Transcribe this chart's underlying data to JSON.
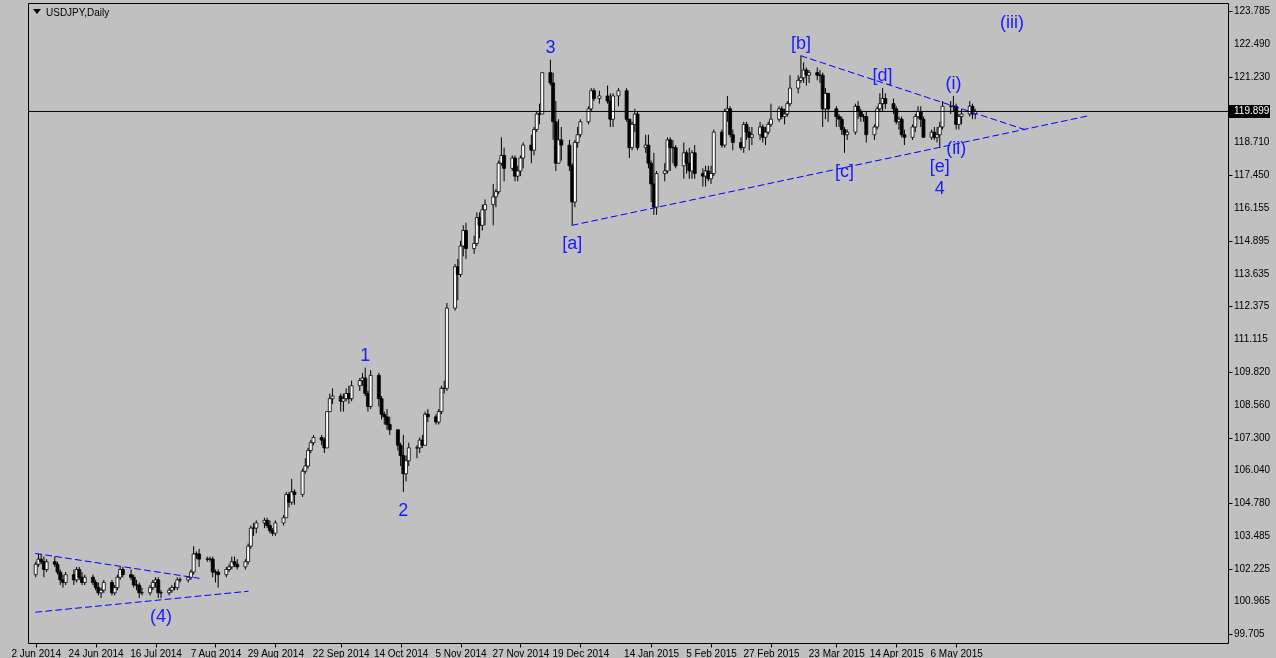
{
  "chart_data": {
    "type": "candlestick",
    "title": "USDJPY,Daily",
    "xlim": [
      "2014-06-01",
      "2015-08-12"
    ],
    "xticks": [
      {
        "value": "2014-06-02",
        "label": "2 Jun 2014"
      },
      {
        "value": "2014-06-24",
        "label": "24 Jun 2014"
      },
      {
        "value": "2014-07-16",
        "label": "16 Jul 2014"
      },
      {
        "value": "2014-08-07",
        "label": "7 Aug 2014"
      },
      {
        "value": "2014-08-29",
        "label": "29 Aug 2014"
      },
      {
        "value": "2014-09-22",
        "label": "22 Sep 2014"
      },
      {
        "value": "2014-10-14",
        "label": "14 Oct 2014"
      },
      {
        "value": "2014-11-05",
        "label": "5 Nov 2014"
      },
      {
        "value": "2014-11-27",
        "label": "27 Nov 2014"
      },
      {
        "value": "2014-12-19",
        "label": "19 Dec 2014"
      },
      {
        "value": "2015-01-14",
        "label": "14 Jan 2015"
      },
      {
        "value": "2015-02-05",
        "label": "5 Feb 2015"
      },
      {
        "value": "2015-02-27",
        "label": "27 Feb 2015"
      },
      {
        "value": "2015-03-23",
        "label": "23 Mar 2015"
      },
      {
        "value": "2015-04-14",
        "label": "14 Apr 2015"
      },
      {
        "value": "2015-05-06",
        "label": "6 May 2015"
      }
    ],
    "ylim": [
      99.36,
      124.09
    ],
    "yticks": [
      99.705,
      100.965,
      102.225,
      103.485,
      {
        "value": 104.78,
        "label": "104.780"
      },
      {
        "value": 106.04,
        "label": "106.040"
      },
      {
        "value": 107.3,
        "label": "107.300"
      },
      {
        "value": 108.56,
        "label": "108.560"
      },
      {
        "value": 109.82,
        "label": "109.820"
      },
      111.115,
      112.375,
      113.635,
      114.895,
      116.155,
      {
        "value": 117.45,
        "label": "117.450"
      },
      {
        "value": 118.71,
        "label": "118.710"
      },
      {
        "value": 121.23,
        "label": "121.230"
      },
      {
        "value": 122.49,
        "label": "122.490"
      },
      123.785
    ],
    "x": [
      "2014-06-02",
      "2014-06-03",
      "2014-06-04",
      "2014-06-05",
      "2014-06-06",
      "2014-06-09",
      "2014-06-10",
      "2014-06-11",
      "2014-06-12",
      "2014-06-13",
      "2014-06-16",
      "2014-06-17",
      "2014-06-18",
      "2014-06-19",
      "2014-06-20",
      "2014-06-23",
      "2014-06-24",
      "2014-06-25",
      "2014-06-26",
      "2014-06-27",
      "2014-06-30",
      "2014-07-01",
      "2014-07-02",
      "2014-07-03",
      "2014-07-04",
      "2014-07-07",
      "2014-07-08",
      "2014-07-09",
      "2014-07-10",
      "2014-07-11",
      "2014-07-14",
      "2014-07-15",
      "2014-07-16",
      "2014-07-17",
      "2014-07-18",
      "2014-07-21",
      "2014-07-22",
      "2014-07-23",
      "2014-07-24",
      "2014-07-25",
      "2014-07-28",
      "2014-07-29",
      "2014-07-30",
      "2014-07-31",
      "2014-08-01",
      "2014-08-04",
      "2014-08-05",
      "2014-08-06",
      "2014-08-07",
      "2014-08-08",
      "2014-08-11",
      "2014-08-12",
      "2014-08-13",
      "2014-08-14",
      "2014-08-15",
      "2014-08-18",
      "2014-08-19",
      "2014-08-20",
      "2014-08-21",
      "2014-08-22",
      "2014-08-25",
      "2014-08-26",
      "2014-08-27",
      "2014-08-28",
      "2014-08-29",
      "2014-09-01",
      "2014-09-02",
      "2014-09-03",
      "2014-09-04",
      "2014-09-05",
      "2014-09-08",
      "2014-09-09",
      "2014-09-10",
      "2014-09-11",
      "2014-09-12",
      "2014-09-15",
      "2014-09-16",
      "2014-09-17",
      "2014-09-18",
      "2014-09-19",
      "2014-09-22",
      "2014-09-23",
      "2014-09-24",
      "2014-09-25",
      "2014-09-26",
      "2014-09-29",
      "2014-09-30",
      "2014-10-01",
      "2014-10-02",
      "2014-10-03",
      "2014-10-06",
      "2014-10-07",
      "2014-10-08",
      "2014-10-09",
      "2014-10-10",
      "2014-10-13",
      "2014-10-14",
      "2014-10-15",
      "2014-10-16",
      "2014-10-17",
      "2014-10-20",
      "2014-10-21",
      "2014-10-22",
      "2014-10-23",
      "2014-10-24",
      "2014-10-27",
      "2014-10-28",
      "2014-10-29",
      "2014-10-30",
      "2014-10-31",
      "2014-11-03",
      "2014-11-04",
      "2014-11-05",
      "2014-11-06",
      "2014-11-07",
      "2014-11-10",
      "2014-11-11",
      "2014-11-12",
      "2014-11-13",
      "2014-11-14",
      "2014-11-17",
      "2014-11-18",
      "2014-11-19",
      "2014-11-20",
      "2014-11-21",
      "2014-11-24",
      "2014-11-25",
      "2014-11-26",
      "2014-11-27",
      "2014-11-28",
      "2014-12-01",
      "2014-12-02",
      "2014-12-03",
      "2014-12-04",
      "2014-12-05",
      "2014-12-08",
      "2014-12-09",
      "2014-12-10",
      "2014-12-11",
      "2014-12-12",
      "2014-12-15",
      "2014-12-16",
      "2014-12-17",
      "2014-12-18",
      "2014-12-19",
      "2014-12-22",
      "2014-12-23",
      "2014-12-24",
      "2014-12-26",
      "2014-12-29",
      "2014-12-30",
      "2014-12-31",
      "2015-01-02",
      "2015-01-05",
      "2015-01-06",
      "2015-01-07",
      "2015-01-08",
      "2015-01-09",
      "2015-01-12",
      "2015-01-13",
      "2015-01-14",
      "2015-01-15",
      "2015-01-16",
      "2015-01-19",
      "2015-01-20",
      "2015-01-21",
      "2015-01-22",
      "2015-01-23",
      "2015-01-26",
      "2015-01-27",
      "2015-01-28",
      "2015-01-29",
      "2015-01-30",
      "2015-02-02",
      "2015-02-03",
      "2015-02-04",
      "2015-02-05",
      "2015-02-06",
      "2015-02-09",
      "2015-02-10",
      "2015-02-11",
      "2015-02-12",
      "2015-02-13",
      "2015-02-16",
      "2015-02-17",
      "2015-02-18",
      "2015-02-19",
      "2015-02-20",
      "2015-02-23",
      "2015-02-24",
      "2015-02-25",
      "2015-02-26",
      "2015-02-27",
      "2015-03-02",
      "2015-03-03",
      "2015-03-04",
      "2015-03-05",
      "2015-03-06",
      "2015-03-09",
      "2015-03-10",
      "2015-03-11",
      "2015-03-12",
      "2015-03-13",
      "2015-03-16",
      "2015-03-17",
      "2015-03-18",
      "2015-03-19",
      "2015-03-20",
      "2015-03-23",
      "2015-03-24",
      "2015-03-25",
      "2015-03-26",
      "2015-03-27",
      "2015-03-30",
      "2015-03-31",
      "2015-04-01",
      "2015-04-02",
      "2015-04-03",
      "2015-04-06",
      "2015-04-07",
      "2015-04-08",
      "2015-04-09",
      "2015-04-10",
      "2015-04-13",
      "2015-04-14",
      "2015-04-15",
      "2015-04-16",
      "2015-04-17",
      "2015-04-20",
      "2015-04-21",
      "2015-04-22",
      "2015-04-23",
      "2015-04-24",
      "2015-04-27",
      "2015-04-28",
      "2015-04-29",
      "2015-04-30",
      "2015-05-01",
      "2015-05-04",
      "2015-05-05",
      "2015-05-06",
      "2015-05-07",
      "2015-05-08",
      "2015-05-11",
      "2015-05-12",
      "2015-05-13"
    ],
    "ohlc": [
      [
        102.0,
        102.5,
        101.9,
        102.4
      ],
      [
        102.4,
        102.8,
        102.3,
        102.6
      ],
      [
        102.6,
        102.8,
        102.4,
        102.5
      ],
      [
        102.5,
        102.7,
        101.9,
        102.2
      ],
      [
        102.2,
        102.6,
        102.1,
        102.5
      ],
      [
        102.5,
        102.7,
        102.3,
        102.4
      ],
      [
        102.4,
        102.5,
        102.0,
        102.1
      ],
      [
        102.1,
        102.2,
        101.6,
        101.8
      ],
      [
        101.8,
        102.0,
        101.5,
        101.7
      ],
      [
        101.7,
        102.1,
        101.6,
        102.0
      ],
      [
        102.0,
        102.2,
        101.6,
        101.8
      ],
      [
        101.8,
        102.3,
        101.7,
        102.2
      ],
      [
        102.2,
        102.3,
        101.8,
        101.9
      ],
      [
        101.9,
        102.1,
        101.6,
        101.7
      ],
      [
        101.7,
        102.0,
        101.6,
        101.9
      ],
      [
        101.9,
        102.0,
        101.6,
        101.7
      ],
      [
        101.7,
        101.8,
        101.4,
        101.5
      ],
      [
        101.5,
        101.7,
        101.2,
        101.3
      ],
      [
        101.3,
        101.5,
        101.1,
        101.4
      ],
      [
        101.4,
        101.8,
        101.3,
        101.7
      ],
      [
        101.7,
        101.8,
        101.2,
        101.3
      ],
      [
        101.3,
        101.6,
        101.2,
        101.5
      ],
      [
        101.5,
        102.0,
        101.4,
        101.9
      ],
      [
        101.9,
        102.3,
        101.8,
        102.2
      ],
      [
        102.2,
        102.3,
        101.9,
        102.0
      ],
      [
        102.0,
        102.2,
        101.8,
        101.9
      ],
      [
        101.9,
        102.0,
        101.5,
        101.6
      ],
      [
        101.6,
        101.8,
        101.4,
        101.6
      ],
      [
        101.6,
        101.7,
        101.1,
        101.3
      ],
      [
        101.3,
        101.5,
        101.2,
        101.3
      ],
      [
        101.3,
        101.6,
        101.2,
        101.5
      ],
      [
        101.5,
        101.8,
        101.4,
        101.7
      ],
      [
        101.7,
        101.9,
        101.5,
        101.8
      ],
      [
        101.8,
        101.9,
        101.1,
        101.3
      ],
      [
        101.3,
        101.4,
        101.1,
        101.3
      ],
      [
        101.3,
        101.5,
        101.2,
        101.4
      ],
      [
        101.4,
        101.6,
        101.3,
        101.5
      ],
      [
        101.5,
        101.7,
        101.4,
        101.5
      ],
      [
        101.5,
        101.9,
        101.4,
        101.8
      ],
      [
        101.8,
        101.9,
        101.7,
        101.8
      ],
      [
        101.8,
        101.9,
        101.7,
        101.9
      ],
      [
        101.9,
        102.2,
        101.8,
        102.1
      ],
      [
        102.1,
        103.1,
        102.0,
        102.8
      ],
      [
        102.8,
        102.9,
        102.6,
        102.8
      ],
      [
        102.8,
        103.0,
        102.3,
        102.6
      ],
      [
        102.6,
        102.7,
        102.5,
        102.6
      ],
      [
        102.6,
        102.7,
        102.5,
        102.6
      ],
      [
        102.6,
        102.7,
        101.9,
        102.1
      ],
      [
        102.1,
        102.2,
        101.7,
        102.1
      ],
      [
        102.1,
        102.2,
        101.5,
        102.0
      ],
      [
        102.0,
        102.3,
        101.9,
        102.2
      ],
      [
        102.2,
        102.4,
        102.1,
        102.3
      ],
      [
        102.3,
        102.7,
        102.2,
        102.5
      ],
      [
        102.5,
        102.7,
        102.3,
        102.4
      ],
      [
        102.4,
        102.6,
        102.2,
        102.3
      ],
      [
        102.3,
        102.6,
        102.2,
        102.5
      ],
      [
        102.5,
        103.2,
        102.4,
        103.1
      ],
      [
        103.1,
        103.9,
        103.0,
        103.8
      ],
      [
        103.8,
        104.0,
        103.5,
        103.8
      ],
      [
        103.8,
        104.1,
        103.6,
        104.0
      ],
      [
        104.0,
        104.2,
        103.8,
        104.1
      ],
      [
        104.1,
        104.2,
        103.8,
        103.9
      ],
      [
        103.9,
        104.1,
        103.6,
        103.7
      ],
      [
        103.7,
        103.8,
        103.5,
        103.6
      ],
      [
        103.6,
        104.1,
        103.5,
        104.0
      ],
      [
        104.0,
        104.3,
        103.9,
        104.2
      ],
      [
        104.2,
        105.2,
        104.2,
        105.1
      ],
      [
        105.1,
        105.2,
        104.6,
        104.8
      ],
      [
        104.8,
        105.7,
        104.7,
        105.2
      ],
      [
        105.2,
        105.3,
        104.7,
        105.1
      ],
      [
        105.1,
        106.1,
        105.0,
        106.0
      ],
      [
        106.0,
        106.5,
        105.9,
        106.2
      ],
      [
        106.2,
        106.9,
        106.1,
        106.8
      ],
      [
        106.8,
        107.2,
        106.7,
        107.1
      ],
      [
        107.1,
        107.4,
        107.0,
        107.3
      ],
      [
        107.3,
        107.4,
        107.0,
        107.2
      ],
      [
        107.2,
        107.3,
        106.7,
        106.9
      ],
      [
        106.9,
        108.3,
        106.9,
        108.3
      ],
      [
        108.3,
        109.0,
        108.3,
        108.8
      ],
      [
        108.8,
        109.2,
        108.6,
        108.9
      ],
      [
        108.9,
        109.0,
        108.3,
        108.7
      ],
      [
        108.7,
        109.0,
        108.3,
        108.8
      ],
      [
        108.8,
        109.2,
        108.7,
        109.0
      ],
      [
        109.0,
        109.3,
        108.6,
        108.8
      ],
      [
        108.8,
        109.5,
        108.7,
        109.3
      ],
      [
        109.3,
        109.6,
        109.1,
        109.5
      ],
      [
        109.5,
        109.8,
        109.3,
        109.6
      ],
      [
        109.6,
        110.0,
        108.9,
        109.0
      ],
      [
        109.0,
        109.1,
        108.3,
        108.5
      ],
      [
        108.5,
        109.9,
        108.4,
        109.7
      ],
      [
        109.7,
        109.8,
        108.5,
        108.8
      ],
      [
        108.8,
        108.9,
        108.0,
        108.2
      ],
      [
        108.2,
        108.3,
        107.8,
        108.1
      ],
      [
        108.1,
        108.4,
        107.6,
        107.8
      ],
      [
        107.8,
        108.1,
        107.4,
        107.6
      ],
      [
        107.6,
        107.6,
        106.8,
        107.0
      ],
      [
        107.0,
        107.1,
        106.2,
        106.6
      ],
      [
        106.6,
        107.4,
        105.2,
        105.9
      ],
      [
        105.9,
        106.6,
        105.6,
        106.4
      ],
      [
        106.4,
        107.1,
        106.2,
        106.9
      ],
      [
        106.9,
        107.0,
        106.5,
        106.9
      ],
      [
        106.9,
        107.3,
        106.7,
        107.2
      ],
      [
        107.2,
        107.4,
        106.9,
        107.0
      ],
      [
        107.0,
        108.3,
        107.0,
        108.2
      ],
      [
        108.2,
        108.4,
        107.9,
        108.1
      ],
      [
        108.1,
        108.2,
        107.8,
        107.9
      ],
      [
        107.9,
        108.4,
        107.8,
        108.3
      ],
      [
        108.3,
        109.3,
        108.2,
        109.2
      ],
      [
        109.2,
        109.5,
        109.0,
        109.2
      ],
      [
        109.2,
        112.5,
        109.1,
        112.3
      ],
      [
        112.3,
        114.0,
        112.2,
        113.9
      ],
      [
        113.9,
        114.2,
        112.6,
        113.6
      ],
      [
        113.6,
        114.9,
        113.5,
        114.7
      ],
      [
        114.7,
        115.5,
        114.3,
        115.3
      ],
      [
        115.3,
        115.6,
        114.2,
        114.6
      ],
      [
        114.6,
        115.1,
        114.4,
        114.8
      ],
      [
        114.8,
        116.0,
        114.7,
        115.8
      ],
      [
        115.8,
        116.0,
        115.0,
        115.5
      ],
      [
        115.5,
        116.3,
        115.3,
        116.1
      ],
      [
        116.1,
        116.5,
        115.5,
        116.3
      ],
      [
        116.3,
        117.1,
        115.5,
        116.6
      ],
      [
        116.6,
        116.9,
        116.2,
        116.8
      ],
      [
        116.8,
        118.0,
        116.7,
        117.9
      ],
      [
        117.9,
        118.9,
        117.8,
        118.2
      ],
      [
        118.2,
        118.5,
        117.2,
        117.7
      ],
      [
        117.7,
        118.2,
        117.6,
        118.1
      ],
      [
        118.1,
        118.2,
        117.2,
        117.4
      ],
      [
        117.4,
        117.8,
        117.2,
        117.6
      ],
      [
        117.6,
        118.2,
        117.4,
        118.1
      ],
      [
        118.1,
        118.7,
        117.7,
        118.6
      ],
      [
        118.6,
        119.0,
        117.9,
        118.4
      ],
      [
        118.4,
        119.3,
        118.2,
        119.2
      ],
      [
        119.2,
        119.9,
        119.1,
        119.8
      ],
      [
        119.8,
        120.2,
        119.4,
        119.8
      ],
      [
        119.8,
        121.4,
        119.8,
        121.4
      ],
      [
        121.4,
        121.9,
        120.9,
        121.0
      ],
      [
        121.0,
        121.4,
        118.8,
        119.5
      ],
      [
        119.5,
        120.3,
        117.6,
        117.9
      ],
      [
        117.9,
        119.6,
        117.9,
        118.8
      ],
      [
        118.8,
        119.3,
        118.0,
        118.6
      ],
      [
        118.6,
        118.8,
        117.6,
        117.8
      ],
      [
        117.8,
        117.9,
        115.5,
        116.4
      ],
      [
        116.4,
        118.8,
        116.2,
        118.7
      ],
      [
        118.7,
        119.3,
        118.5,
        119.0
      ],
      [
        119.0,
        119.6,
        118.9,
        119.5
      ],
      [
        119.5,
        120.1,
        119.4,
        120.0
      ],
      [
        120.0,
        120.8,
        119.9,
        120.7
      ],
      [
        120.7,
        120.8,
        120.3,
        120.4
      ],
      [
        120.4,
        120.7,
        120.2,
        120.5
      ],
      [
        120.5,
        120.9,
        120.2,
        120.3
      ],
      [
        120.3,
        120.6,
        119.3,
        119.6
      ],
      [
        119.6,
        120.6,
        119.3,
        120.5
      ],
      [
        120.5,
        120.8,
        120.1,
        120.7
      ],
      [
        120.7,
        120.8,
        119.5,
        119.6
      ],
      [
        119.6,
        119.6,
        118.1,
        118.5
      ],
      [
        118.5,
        119.5,
        118.4,
        119.4
      ],
      [
        119.4,
        120.0,
        119.1,
        119.8
      ],
      [
        119.8,
        119.9,
        118.4,
        118.5
      ],
      [
        118.5,
        119.0,
        118.3,
        118.6
      ],
      [
        118.6,
        119.0,
        117.7,
        117.9
      ],
      [
        117.9,
        118.0,
        116.4,
        117.1
      ],
      [
        117.1,
        118.3,
        115.9,
        116.2
      ],
      [
        116.2,
        117.6,
        115.9,
        117.5
      ],
      [
        117.5,
        117.9,
        117.2,
        117.6
      ],
      [
        117.6,
        118.9,
        117.5,
        118.8
      ],
      [
        118.8,
        118.9,
        117.6,
        118.5
      ],
      [
        118.5,
        118.8,
        117.9,
        118.5
      ],
      [
        118.5,
        118.6,
        117.7,
        117.8
      ],
      [
        117.8,
        118.7,
        117.3,
        118.3
      ],
      [
        118.3,
        118.4,
        117.5,
        117.9
      ],
      [
        117.9,
        118.5,
        117.3,
        117.6
      ],
      [
        117.6,
        118.4,
        117.3,
        118.3
      ],
      [
        118.3,
        118.6,
        117.3,
        117.5
      ],
      [
        117.5,
        117.7,
        117.0,
        117.4
      ],
      [
        117.4,
        117.8,
        117.0,
        117.6
      ],
      [
        117.6,
        117.8,
        117.2,
        117.3
      ],
      [
        117.3,
        117.8,
        117.1,
        117.5
      ],
      [
        117.5,
        119.2,
        117.4,
        119.1
      ],
      [
        119.1,
        119.2,
        118.5,
        118.6
      ],
      [
        118.6,
        120.0,
        118.5,
        119.9
      ],
      [
        119.9,
        120.5,
        119.5,
        120.0
      ],
      [
        120.0,
        120.1,
        118.9,
        119.0
      ],
      [
        119.0,
        119.2,
        118.4,
        118.7
      ],
      [
        118.7,
        118.9,
        118.4,
        118.5
      ],
      [
        118.5,
        119.5,
        118.3,
        119.4
      ],
      [
        119.4,
        119.5,
        118.8,
        119.1
      ],
      [
        119.1,
        119.3,
        118.4,
        118.9
      ],
      [
        118.9,
        119.3,
        118.6,
        119.0
      ],
      [
        119.0,
        119.5,
        118.8,
        119.3
      ],
      [
        119.3,
        119.4,
        118.7,
        118.9
      ],
      [
        118.9,
        119.3,
        118.6,
        119.1
      ],
      [
        119.1,
        119.5,
        119.0,
        119.4
      ],
      [
        119.4,
        120.2,
        119.3,
        119.6
      ],
      [
        119.6,
        120.1,
        119.5,
        120.0
      ],
      [
        120.0,
        120.1,
        119.6,
        119.7
      ],
      [
        119.7,
        120.0,
        119.4,
        119.8
      ],
      [
        119.8,
        120.3,
        119.7,
        120.2
      ],
      [
        120.2,
        121.3,
        120.1,
        120.8
      ],
      [
        120.8,
        121.3,
        120.6,
        121.1
      ],
      [
        121.1,
        122.05,
        121.0,
        121.2
      ],
      [
        121.2,
        121.8,
        121.0,
        121.5
      ],
      [
        121.5,
        121.6,
        120.9,
        121.3
      ],
      [
        121.3,
        121.5,
        121.0,
        121.4
      ],
      [
        121.4,
        121.6,
        121.1,
        121.3
      ],
      [
        121.3,
        121.5,
        121.0,
        121.3
      ],
      [
        121.3,
        121.4,
        119.3,
        120.0
      ],
      [
        120.0,
        120.8,
        119.6,
        120.6
      ],
      [
        120.6,
        120.6,
        119.5,
        120.0
      ],
      [
        120.0,
        120.1,
        119.3,
        119.7
      ],
      [
        119.7,
        119.8,
        119.3,
        119.6
      ],
      [
        119.6,
        119.7,
        119.0,
        119.2
      ],
      [
        119.2,
        119.3,
        118.3,
        119.0
      ],
      [
        119.0,
        119.2,
        118.8,
        119.1
      ],
      [
        119.1,
        120.2,
        119.0,
        120.1
      ],
      [
        120.1,
        120.3,
        119.6,
        119.9
      ],
      [
        119.9,
        120.0,
        119.5,
        119.7
      ],
      [
        119.7,
        119.8,
        119.5,
        119.7
      ],
      [
        119.7,
        119.9,
        118.7,
        119.0
      ],
      [
        119.0,
        119.4,
        118.8,
        119.3
      ],
      [
        119.3,
        120.1,
        119.2,
        120.0
      ],
      [
        120.0,
        120.6,
        119.9,
        120.2
      ],
      [
        120.2,
        120.8,
        119.9,
        120.4
      ],
      [
        120.4,
        120.6,
        120.0,
        120.2
      ],
      [
        120.2,
        120.4,
        119.8,
        120.0
      ],
      [
        120.0,
        120.1,
        119.4,
        119.5
      ],
      [
        119.5,
        119.7,
        119.2,
        119.6
      ],
      [
        119.6,
        119.7,
        118.9,
        119.0
      ],
      [
        119.0,
        119.2,
        118.6,
        118.9
      ],
      [
        118.9,
        119.4,
        118.8,
        119.3
      ],
      [
        119.3,
        119.8,
        119.1,
        119.7
      ],
      [
        119.7,
        120.1,
        119.6,
        119.9
      ],
      [
        119.9,
        120.1,
        119.3,
        119.6
      ],
      [
        119.6,
        119.7,
        118.9,
        118.9
      ],
      [
        118.9,
        119.2,
        118.8,
        119.1
      ],
      [
        119.1,
        119.3,
        118.8,
        118.9
      ],
      [
        118.9,
        119.3,
        118.7,
        119.0
      ],
      [
        119.0,
        119.5,
        118.5,
        119.3
      ],
      [
        119.3,
        120.3,
        119.2,
        120.1
      ],
      [
        120.1,
        120.3,
        119.8,
        120.1
      ],
      [
        120.1,
        120.5,
        119.9,
        120.1
      ],
      [
        120.1,
        120.2,
        119.2,
        119.4
      ],
      [
        119.4,
        119.8,
        119.2,
        119.7
      ],
      [
        119.7,
        120.0,
        119.4,
        119.8
      ],
      [
        119.8,
        120.3,
        119.7,
        120.1
      ],
      [
        120.1,
        120.2,
        119.6,
        119.8
      ],
      [
        119.8,
        120.0,
        119.6,
        119.9
      ]
    ],
    "line_style": "dashed",
    "series": [
      {
        "type": "line",
        "color": "#0000ff",
        "x": [
          "2014-06-02",
          "2014-08-01"
        ],
        "values": [
          102.82,
          101.86
        ]
      },
      {
        "type": "line",
        "color": "#0000ff",
        "x": [
          "2014-06-02",
          "2014-08-19"
        ],
        "values": [
          100.55,
          101.36
        ]
      },
      {
        "type": "line",
        "color": "#0000ff",
        "x": [
          "2014-12-16",
          "2015-06-24"
        ],
        "values": [
          115.5,
          119.74
        ]
      },
      {
        "type": "line",
        "color": "#0000ff",
        "x": [
          "2015-03-10",
          "2015-06-01"
        ],
        "values": [
          122.05,
          119.17
        ]
      }
    ],
    "ref_lines": [
      {
        "axis": "y",
        "value": 119.899,
        "label": "119.899",
        "color": "#000000"
      }
    ],
    "annotations": [
      {
        "text": "1",
        "x": "2014-10-01",
        "y": 110.0
      },
      {
        "text": "2",
        "x": "2014-10-15",
        "y": 105.2
      },
      {
        "text": "3",
        "x": "2014-12-08",
        "y": 121.9
      },
      {
        "text": "[e]",
        "x": "2015-04-30",
        "y": 118.5
      },
      {
        "text": "4",
        "x": "2015-04-30",
        "y": 118.5
      },
      {
        "text": "(4)",
        "x": "2014-07-18",
        "y": 101.1
      },
      {
        "text": "[a]",
        "x": "2014-12-16",
        "y": 115.5
      },
      {
        "text": "[b]",
        "x": "2015-03-10",
        "y": 122.05
      },
      {
        "text": "[c]",
        "x": "2015-03-26",
        "y": 118.3
      },
      {
        "text": "[d]",
        "x": "2015-04-09",
        "y": 120.8
      },
      {
        "text": "(i)",
        "x": "2015-05-05",
        "y": 120.5
      },
      {
        "text": "(ii)",
        "x": "2015-05-06",
        "y": 119.2
      },
      "(iii)"
    ]
  }
}
